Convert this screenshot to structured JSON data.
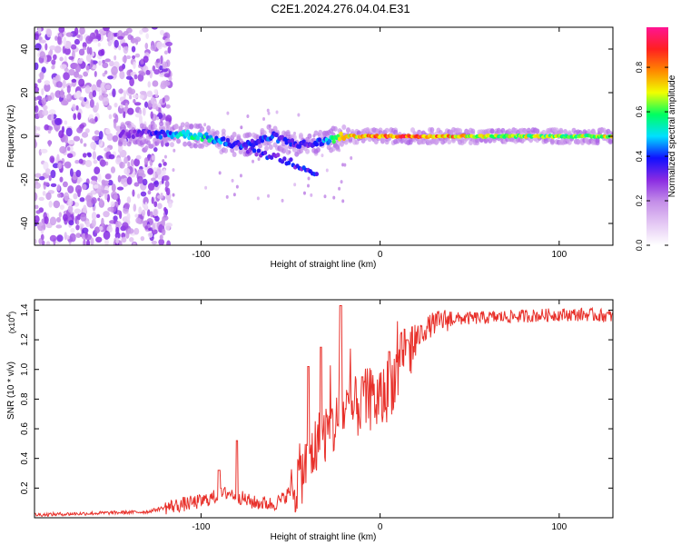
{
  "chart_data": [
    {
      "type": "heatmap",
      "title": "C2E1.2024.276.04.04.E31",
      "xlabel": "Height of straight line (km)",
      "ylabel": "Frequency (Hz)",
      "xlim": [
        -193,
        130
      ],
      "ylim": [
        -50,
        50
      ],
      "xticks": [
        -100,
        0,
        100
      ],
      "yticks": [
        -40,
        -20,
        0,
        20,
        40
      ],
      "colorbar": {
        "label": "Normalized spectral amplitude",
        "range": [
          0,
          0.98
        ],
        "ticks": [
          0.0,
          0.2,
          0.4,
          0.6,
          0.8
        ],
        "colormap": [
          "#ffffff",
          "#e4c8f4",
          "#c48ee8",
          "#8a2be2",
          "#1010ff",
          "#00e0ff",
          "#00ff60",
          "#f0ff00",
          "#ff8800",
          "#ff2020",
          "#ff1493"
        ]
      },
      "ridge": {
        "x": [
          -140,
          -130,
          -120,
          -110,
          -100,
          -90,
          -80,
          -70,
          -60,
          -50,
          -40,
          -30,
          -20,
          0,
          20,
          60,
          100,
          130
        ],
        "frequency": [
          1,
          1,
          1,
          1,
          0,
          -2,
          -4,
          -3,
          0,
          -3,
          -4,
          -2,
          0,
          0,
          0,
          0,
          0,
          0
        ],
        "amplitude": [
          0.3,
          0.35,
          0.45,
          0.55,
          0.6,
          0.5,
          0.45,
          0.4,
          0.45,
          0.4,
          0.35,
          0.5,
          0.8,
          0.9,
          0.95,
          0.75,
          0.7,
          0.75
        ]
      },
      "branch": {
        "x": [
          -75,
          -60,
          -50,
          -40,
          -35
        ],
        "frequency": [
          -6,
          -9,
          -12,
          -15,
          -18
        ]
      },
      "noise_region_x": [
        -193,
        -125
      ]
    },
    {
      "type": "line",
      "xlabel": "Height of straight line (km)",
      "ylabel": "SNR (10 * v/v)",
      "y_multiplier": "(x10^4)",
      "y_multiplier_base": "(x10",
      "y_multiplier_exp": "4",
      "y_multiplier_close": ")",
      "xlim": [
        -193,
        130
      ],
      "ylim": [
        0,
        1.47
      ],
      "xticks": [
        -100,
        0,
        100
      ],
      "yticks": [
        0.2,
        0.4,
        0.6,
        0.8,
        1.0,
        1.2,
        1.4
      ],
      "series": [
        {
          "color": "#e8302a",
          "x": [
            -193,
            -160,
            -130,
            -120,
            -110,
            -100,
            -90,
            -85,
            -80,
            -75,
            -70,
            -65,
            -60,
            -55,
            -50,
            -45,
            -40,
            -35,
            -30,
            -25,
            -22,
            -20,
            -15,
            -10,
            -5,
            0,
            5,
            10,
            15,
            20,
            25,
            30,
            35,
            40,
            60,
            80,
            100,
            115,
            130
          ],
          "y": [
            0.02,
            0.03,
            0.04,
            0.07,
            0.09,
            0.11,
            0.15,
            0.17,
            0.15,
            0.12,
            0.1,
            0.1,
            0.09,
            0.12,
            0.18,
            0.28,
            0.38,
            0.5,
            0.58,
            0.62,
            0.68,
            0.72,
            0.72,
            0.78,
            0.8,
            0.78,
            0.88,
            1.0,
            1.1,
            1.2,
            1.27,
            1.31,
            1.33,
            1.34,
            1.35,
            1.36,
            1.37,
            1.37,
            1.36
          ],
          "peaks": [
            {
              "x": -90,
              "y": 0.32
            },
            {
              "x": -80,
              "y": 0.52
            },
            {
              "x": -40,
              "y": 1.02
            },
            {
              "x": -33,
              "y": 1.15
            },
            {
              "x": -22,
              "y": 1.43
            },
            {
              "x": -10,
              "y": 0.95
            },
            {
              "x": 5,
              "y": 1.12
            },
            {
              "x": 15,
              "y": 1.2
            }
          ]
        }
      ]
    }
  ]
}
